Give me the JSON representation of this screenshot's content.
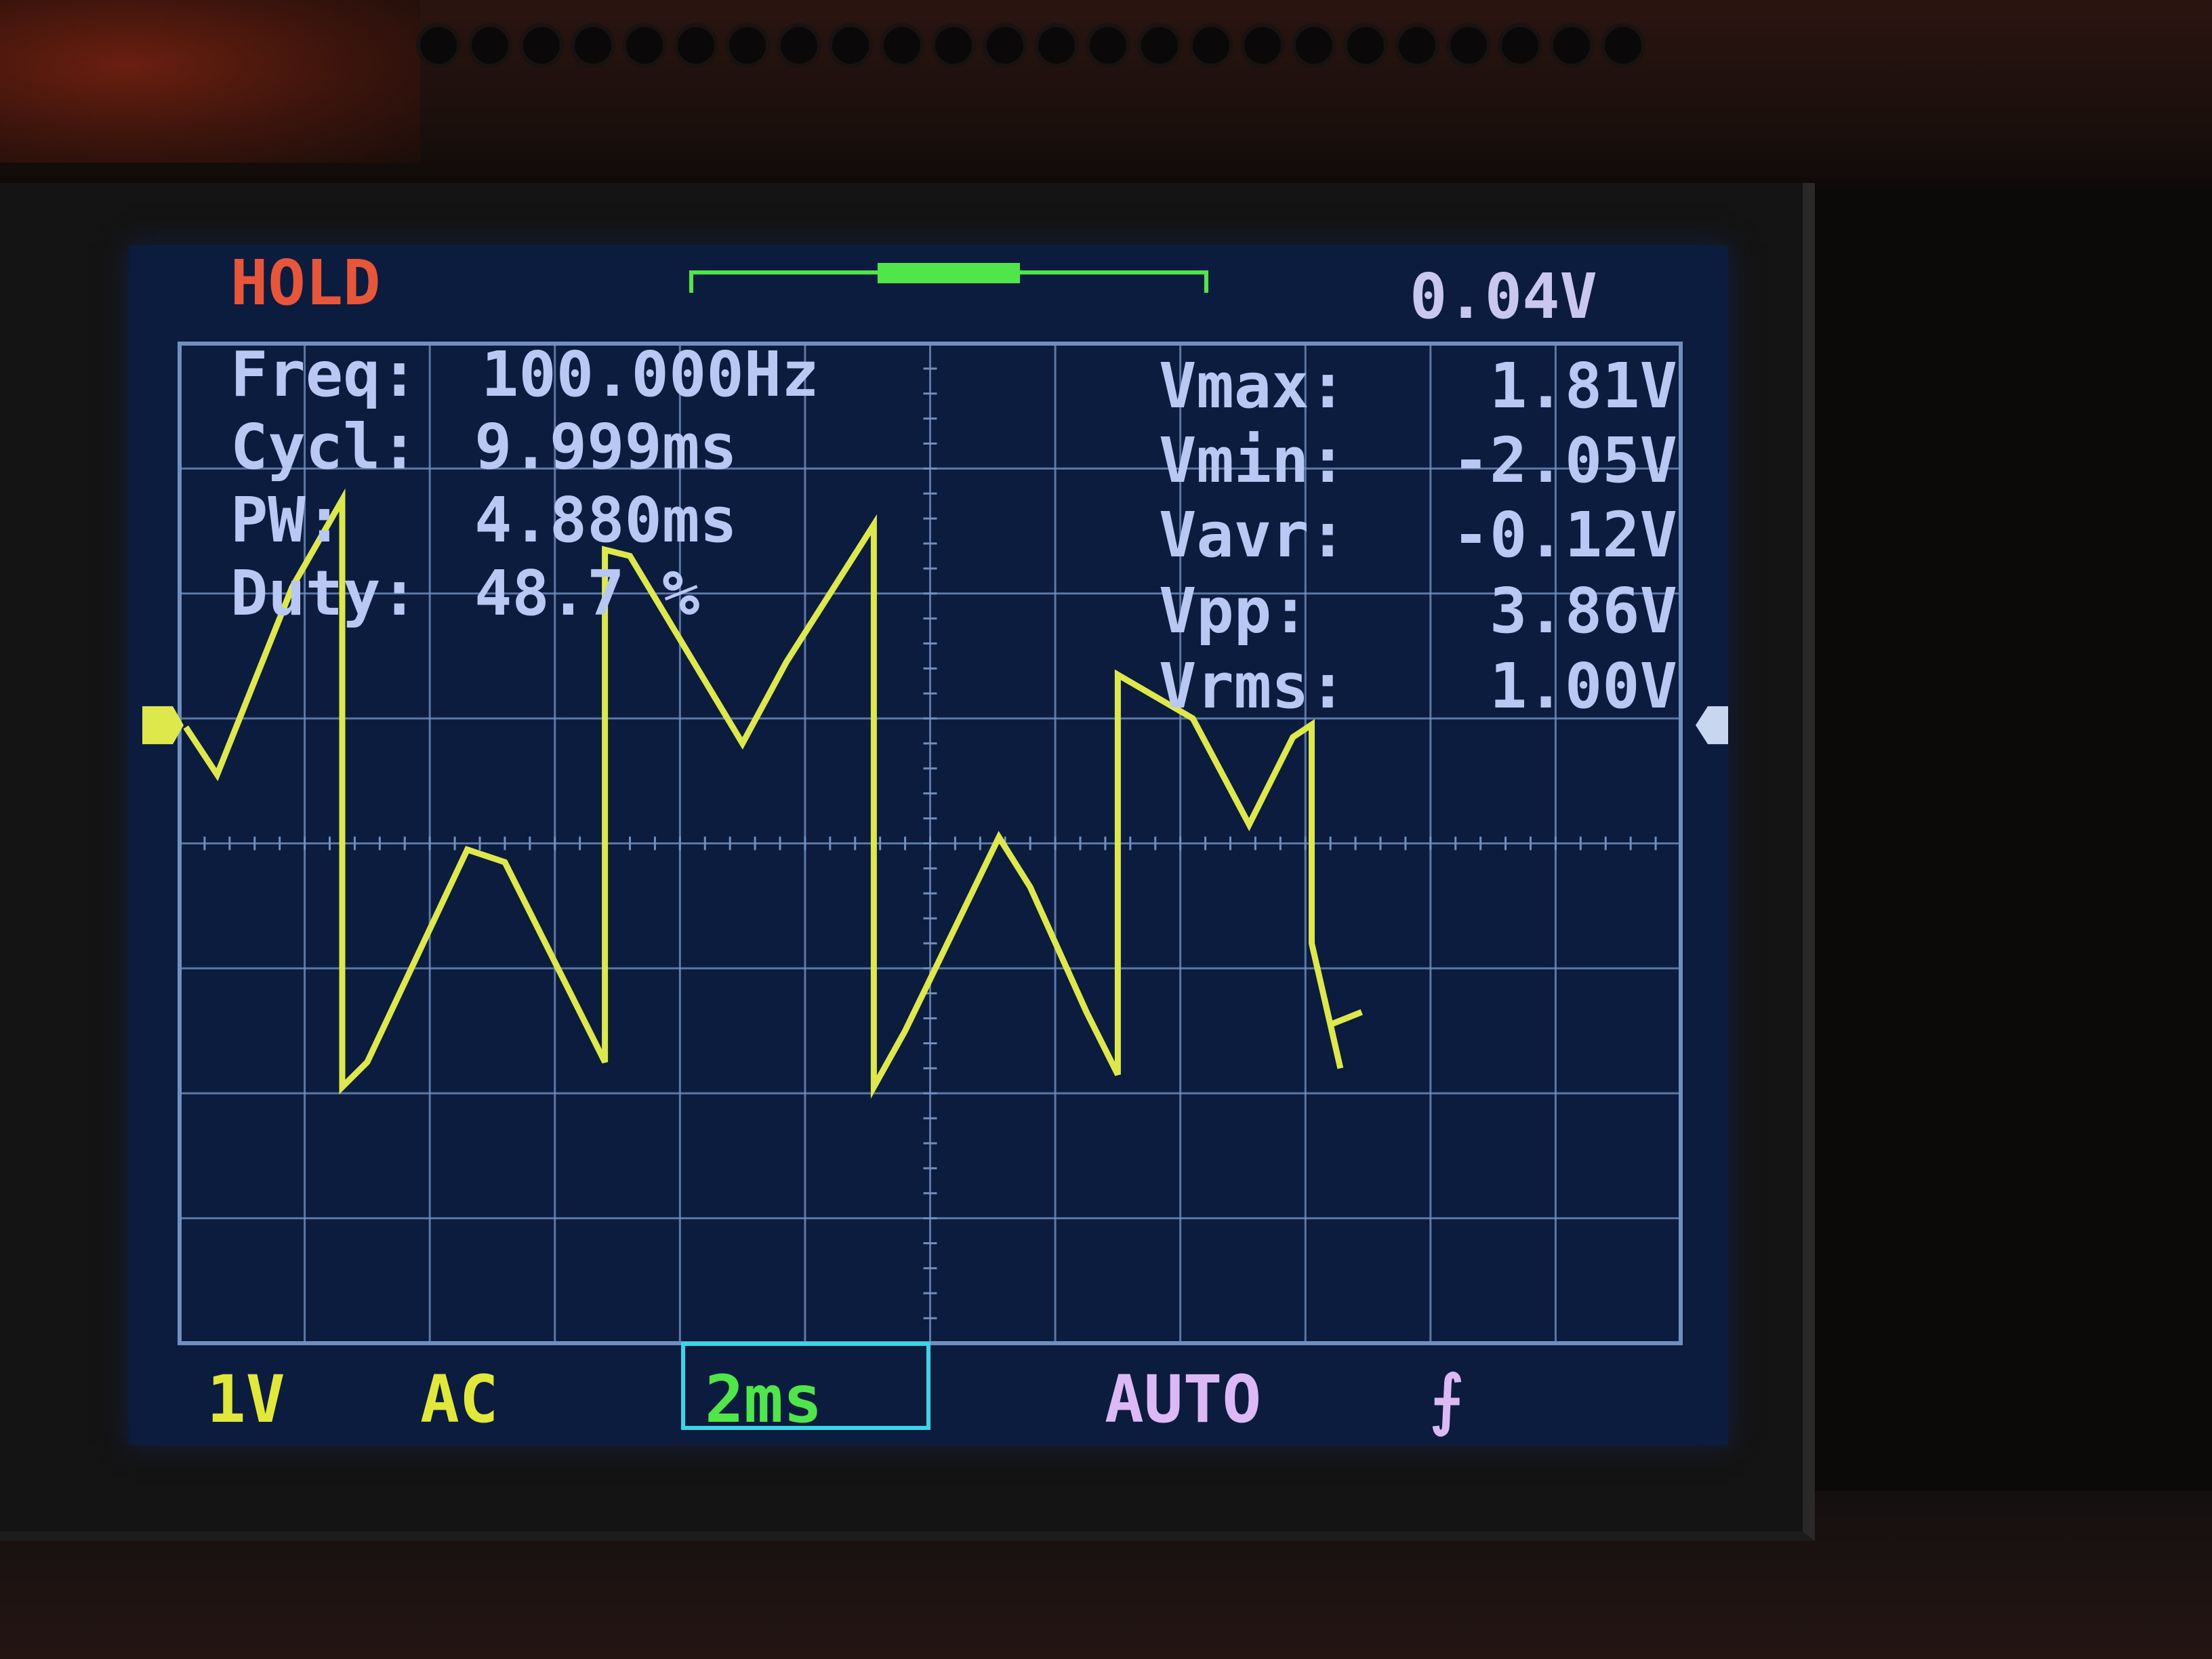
{
  "header": {
    "status": "HOLD",
    "voltage": "0.04V"
  },
  "measurements_left": [
    {
      "label": "Freq:",
      "value": "100.000Hz"
    },
    {
      "label": "Cycl:",
      "value": "9.999ms"
    },
    {
      "label": "PW:",
      "value": "4.880ms"
    },
    {
      "label": "Duty:",
      "value": "48.7 %"
    }
  ],
  "measurements_right": [
    {
      "label": "Vmax:",
      "value": "1.81V"
    },
    {
      "label": "Vmin:",
      "value": "-2.05V"
    },
    {
      "label": "Vavr:",
      "value": "-0.12V"
    },
    {
      "label": "Vpp:",
      "value": "3.86V"
    },
    {
      "label": "Vrms:",
      "value": "1.00V"
    }
  ],
  "footer": {
    "volts_per_div": "1V",
    "coupling": "AC",
    "time_per_div": "2ms",
    "trigger_mode": "AUTO",
    "trigger_edge": "⨍"
  },
  "colors": {
    "screen_bg": "#0c1c3e",
    "grid": "#6f8fbf",
    "trace": "#dfe84a",
    "hold": "#e8563a",
    "text": "#b8c8f2",
    "time_box": "#38d6e6",
    "buffer_bar": "#4fe64a"
  },
  "buffer_position": 0.5
}
